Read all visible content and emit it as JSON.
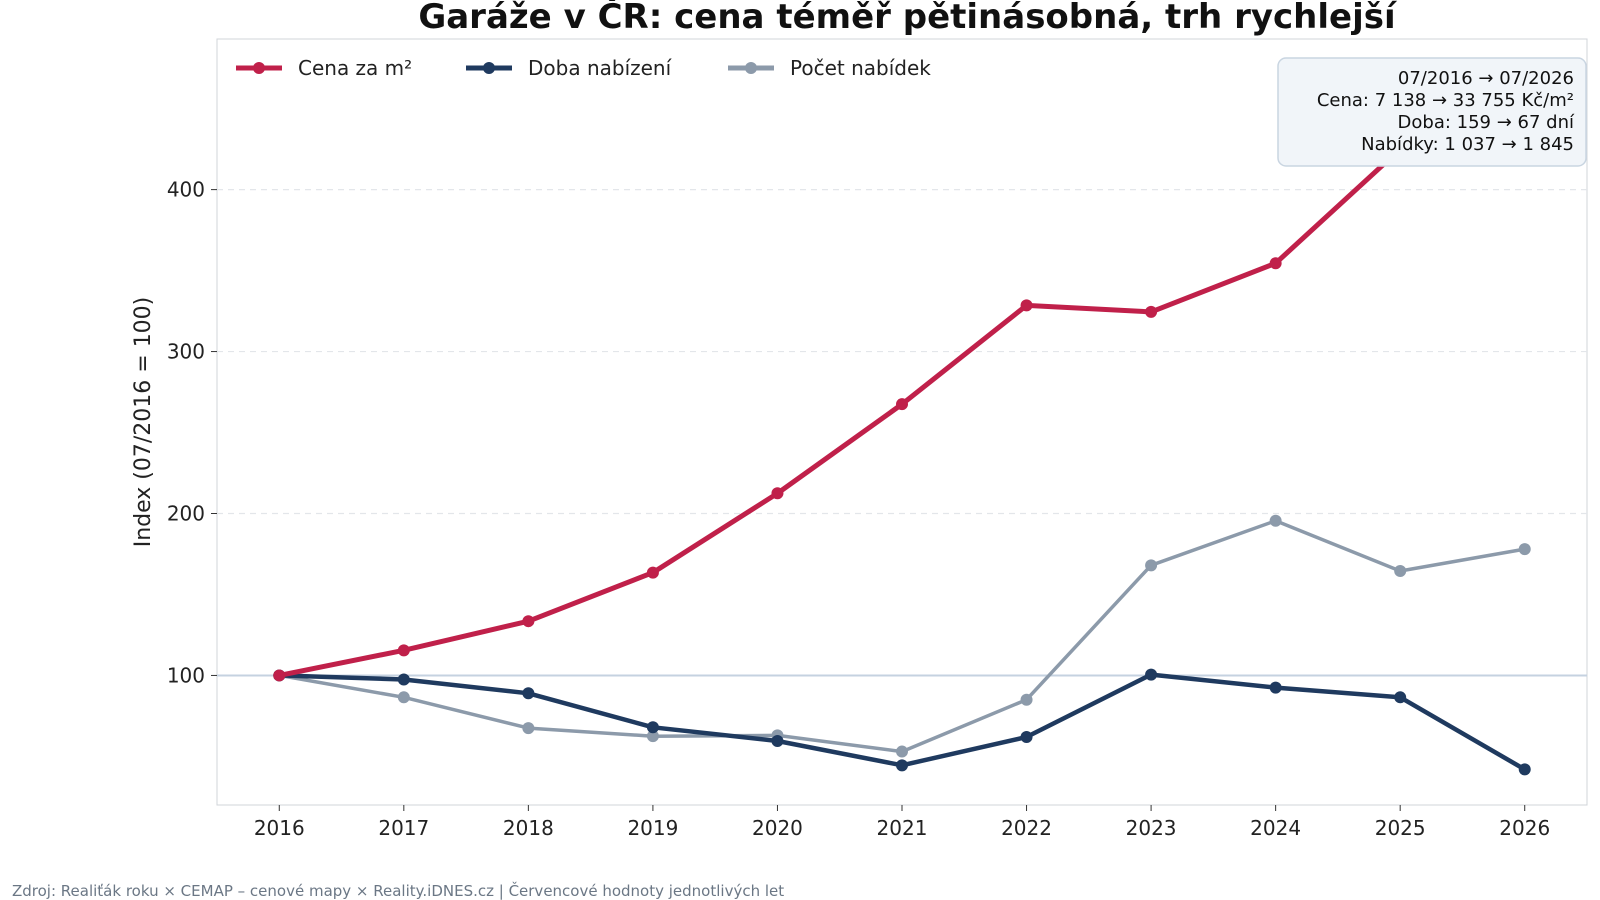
{
  "chart_data": {
    "type": "line",
    "title": "Garáže v ČR: cena téměř pětinásobná, trh rychlejší",
    "xlabel": "",
    "ylabel": "Index (07/2016 = 100)",
    "x": [
      2016,
      2017,
      2018,
      2019,
      2020,
      2021,
      2022,
      2023,
      2024,
      2025,
      2026
    ],
    "x_tick_labels": [
      "2016",
      "2017",
      "2018",
      "2019",
      "2020",
      "2021",
      "2022",
      "2023",
      "2024",
      "2025",
      "2026"
    ],
    "y_ticks": [
      100,
      200,
      300,
      400
    ],
    "y_tick_labels": [
      "100",
      "200",
      "300",
      "400"
    ],
    "xlim": [
      2015.5,
      2026.5
    ],
    "ylim": [
      20,
      493
    ],
    "reference_line": 100,
    "grid": "horizontal dashed",
    "legend_position": "top-left",
    "series": [
      {
        "name": "Cena za m²",
        "color": "#c0204a",
        "values": [
          100,
          115.5,
          133.5,
          163.5,
          212.5,
          267.5,
          328.5,
          324.5,
          354.5,
          425,
          473
        ]
      },
      {
        "name": "Doba nabízení",
        "color": "#1f3a5f",
        "values": [
          100,
          97.5,
          89,
          68,
          59.5,
          44.5,
          62,
          100.5,
          92.5,
          86.5,
          42
        ]
      },
      {
        "name": "Počet nabídek",
        "color": "#8c9aaa",
        "values": [
          100,
          86.5,
          67.5,
          62.5,
          63,
          53,
          85,
          168,
          195.5,
          164.5,
          178
        ]
      }
    ],
    "annotation": {
      "lines": [
        "07/2016 → 07/2026",
        "Cena: 7 138 → 33 755 Kč/m²",
        "Doba: 159 → 67 dní",
        "Nabídky: 1 037 → 1 845"
      ],
      "position": "top-right"
    },
    "source": "Zdroj: Realiťák roku × CEMAP – cenové mapy × Reality.iDNES.cz | Červencové hodnoty jednotlivých let"
  }
}
